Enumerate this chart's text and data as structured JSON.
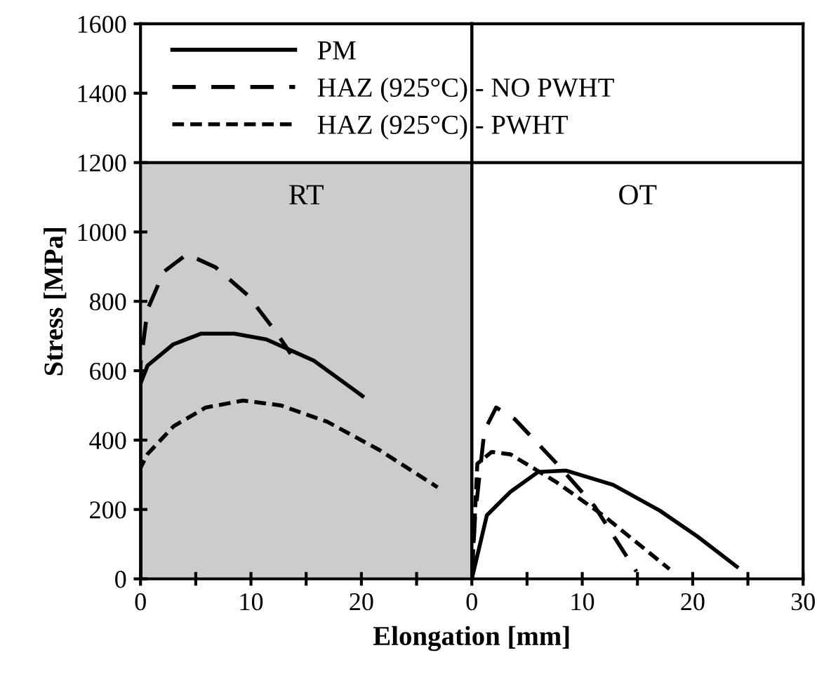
{
  "chart_data": [
    {
      "type": "line",
      "ylabel": "Stress [MPa]",
      "xlabel": "Elongation [mm]",
      "xlim": [
        0,
        30
      ],
      "ylim": [
        0,
        1600
      ],
      "xticks": [
        0,
        {
          "value": 5,
          "label": null
        },
        10,
        {
          "value": 15,
          "label": null
        },
        20,
        {
          "value": 25,
          "label": null
        }
      ],
      "yticks": [
        0,
        200,
        400,
        600,
        800,
        1000,
        1200,
        1400,
        1600
      ],
      "grid": false,
      "legend": "top right",
      "bands": [
        {
          "axis": "y",
          "from": 0,
          "to": 1200,
          "color": "#cccccc"
        }
      ],
      "ref_lines": [
        {
          "axis": "y",
          "value": 1200,
          "color": "#000000"
        }
      ],
      "annotations": [
        "RT"
      ],
      "series": [
        {
          "name": "PM",
          "color": "#000000",
          "line_style": "solid",
          "x": [
            0,
            0,
            0.64,
            2.96,
            5.5,
            8.5,
            11.4,
            15.7,
            20.1
          ],
          "values": [
            0,
            563,
            615,
            676,
            707,
            707,
            690,
            629,
            527
          ]
        },
        {
          "name": "HAZ (925°C) - NO PWHT",
          "color": "#000000",
          "line_style": "dashed",
          "x": [
            0,
            0,
            0.64,
            2.1,
            4.2,
            6.8,
            9.7,
            12.3,
            13.6
          ],
          "values": [
            0,
            620,
            777,
            885,
            936,
            898,
            818,
            710,
            649
          ]
        },
        {
          "name": "HAZ (925°C) - PWHT",
          "color": "#000000",
          "line_style": "dotted",
          "x": [
            0,
            0,
            0.64,
            3.0,
            5.9,
            9.3,
            12.7,
            16.9,
            21.6,
            26.9
          ],
          "values": [
            0,
            320,
            360,
            440,
            494,
            514,
            500,
            453,
            372,
            264
          ]
        }
      ]
    },
    {
      "type": "line",
      "xlim": [
        0,
        30
      ],
      "ylim": [
        0,
        1600
      ],
      "tick_labels": "x",
      "xticks": [
        0,
        {
          "value": 5,
          "label": null
        },
        10,
        {
          "value": 15,
          "label": null
        },
        20,
        {
          "value": 25,
          "label": null
        },
        30
      ],
      "yticks": [
        0,
        200,
        400,
        600,
        800,
        1000,
        1200,
        1400,
        1600
      ],
      "grid": false,
      "ref_lines": [
        {
          "axis": "y",
          "value": 1200,
          "color": "#000000"
        }
      ],
      "annotations": [
        "OT"
      ],
      "series": [
        {
          "color": "#000000",
          "line_style": "solid",
          "x": [
            0,
            1.36,
            3.5,
            6.0,
            8.55,
            12.8,
            17.0,
            20.4,
            24.0
          ],
          "values": [
            0,
            183,
            251,
            308,
            312,
            271,
            197,
            123,
            35
          ]
        },
        {
          "color": "#000000",
          "line_style": "dashed",
          "x": [
            0,
            0.3,
            1.14,
            2.2,
            3.9,
            7.7,
            11.1,
            14.9
          ],
          "values": [
            0,
            183,
            427,
            494,
            460,
            332,
            210,
            21
          ]
        },
        {
          "color": "#000000",
          "line_style": "dotted",
          "x": [
            0,
            0.5,
            1.8,
            3.5,
            7.7,
            11.9,
            17.9
          ],
          "values": [
            0,
            332,
            366,
            359,
            278,
            183,
            28
          ]
        }
      ]
    }
  ]
}
